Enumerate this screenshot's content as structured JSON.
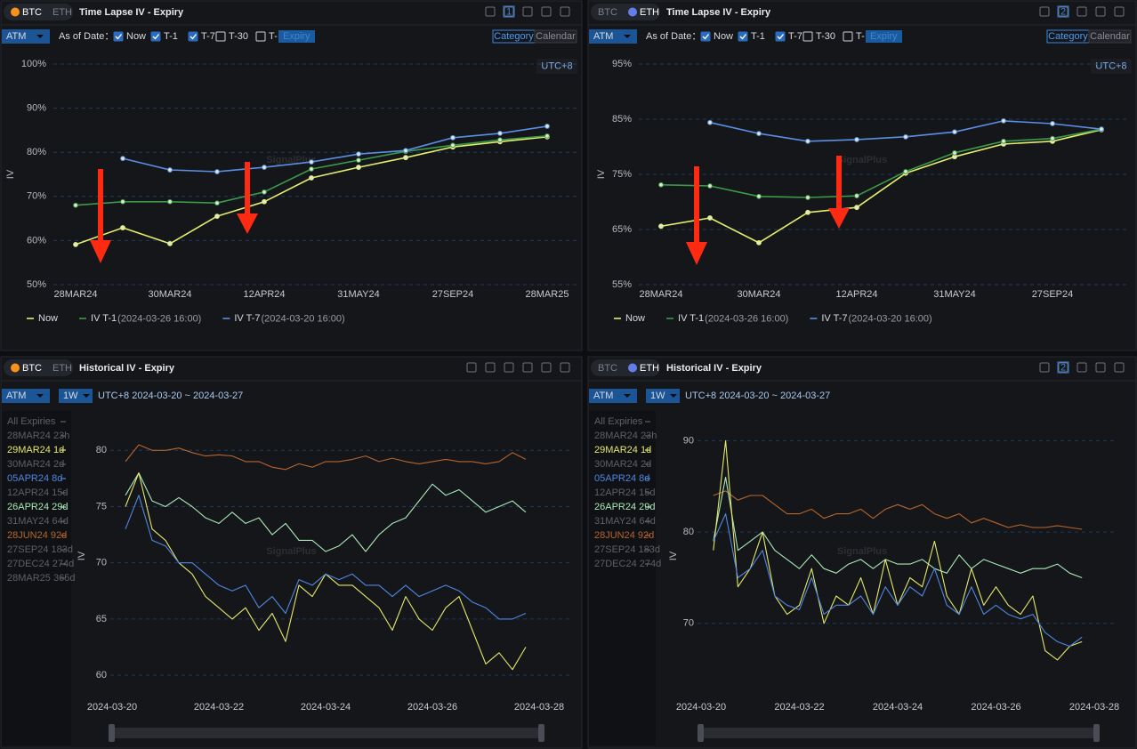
{
  "panels": [
    {
      "tabs": [
        "BTC",
        "ETH"
      ],
      "active_tab": 0,
      "title": "Time Lapse IV - Expiry",
      "page_badge": "1",
      "mode": "ATM",
      "as_of_label": "As of Date：",
      "checks": [
        {
          "label": "Now",
          "checked": true
        },
        {
          "label": "T-1",
          "checked": true
        },
        {
          "label": "T-7",
          "checked": true
        },
        {
          "label": "T-30",
          "checked": false
        },
        {
          "label": "T-",
          "checked": false
        }
      ],
      "expiry_placeholder": "Expiry",
      "views": [
        "Category",
        "Calendar"
      ],
      "active_view": 0,
      "timezone": "UTC+8",
      "watermark": "SignalPlus"
    },
    {
      "tabs": [
        "BTC",
        "ETH"
      ],
      "active_tab": 1,
      "title": "Time Lapse IV - Expiry",
      "page_badge": "2",
      "mode": "ATM",
      "as_of_label": "As of Date：",
      "checks": [
        {
          "label": "Now",
          "checked": true
        },
        {
          "label": "T-1",
          "checked": true
        },
        {
          "label": "T-7",
          "checked": true
        },
        {
          "label": "T-30",
          "checked": false
        },
        {
          "label": "T-",
          "checked": false
        }
      ],
      "expiry_placeholder": "Expiry",
      "views": [
        "Category",
        "Calendar"
      ],
      "active_view": 0,
      "timezone": "UTC+8",
      "watermark": "SignalPlus"
    },
    {
      "tabs": [
        "BTC",
        "ETH"
      ],
      "active_tab": 0,
      "title": "Historical IV - Expiry",
      "mode": "ATM",
      "period": "1W",
      "range": "UTC+8 2024-03-20 ~ 2024-03-27",
      "watermark": "SignalPlus",
      "expiries": [
        {
          "label": "All Expiries"
        },
        {
          "label": "28MAR24 23h"
        },
        {
          "label": "29MAR24 1d",
          "color": "#e4e86a"
        },
        {
          "label": "30MAR24 2d"
        },
        {
          "label": "05APR24 8d",
          "color": "#4f86e0"
        },
        {
          "label": "12APR24 15d"
        },
        {
          "label": "26APR24 29d",
          "color": "#a9e8b8"
        },
        {
          "label": "31MAY24 64d"
        },
        {
          "label": "28JUN24 92d",
          "color": "#b5652e"
        },
        {
          "label": "27SEP24 183d"
        },
        {
          "label": "27DEC24 274d"
        },
        {
          "label": "28MAR25 365d"
        }
      ]
    },
    {
      "tabs": [
        "BTC",
        "ETH"
      ],
      "active_tab": 1,
      "title": "Historical IV - Expiry",
      "page_badge": "2",
      "mode": "ATM",
      "period": "1W",
      "range": "UTC+8 2024-03-20 ~ 2024-03-27",
      "watermark": "SignalPlus",
      "expiries": [
        {
          "label": "All Expiries"
        },
        {
          "label": "28MAR24 23h"
        },
        {
          "label": "29MAR24 1d",
          "color": "#e4e86a"
        },
        {
          "label": "30MAR24 2d"
        },
        {
          "label": "05APR24 8d",
          "color": "#4f86e0"
        },
        {
          "label": "12APR24 15d"
        },
        {
          "label": "26APR24 29d",
          "color": "#a9e8b8"
        },
        {
          "label": "31MAY24 64d"
        },
        {
          "label": "28JUN24 92d",
          "color": "#b5652e"
        },
        {
          "label": "27SEP24 183d"
        },
        {
          "label": "27DEC24 274d"
        }
      ]
    }
  ],
  "chart_data": [
    {
      "type": "line",
      "y_label": "IV",
      "markers": true,
      "grid": true,
      "categories": [
        "28MAR24",
        null,
        "30MAR24",
        null,
        "12APR24",
        null,
        "31MAY24",
        null,
        "27SEP24",
        null,
        "28MAR25"
      ],
      "ylim": [
        50,
        100
      ],
      "yticks": [
        {
          "value": 50,
          "label": "50%"
        },
        {
          "value": 60,
          "label": "60%"
        },
        {
          "value": 70,
          "label": "70%"
        },
        {
          "value": 80,
          "label": "80%"
        },
        {
          "value": 90,
          "label": "90%"
        },
        {
          "value": 100,
          "label": "100%"
        }
      ],
      "series": [
        {
          "name": "Now",
          "color": "#e3ee6d",
          "values": [
            59.1,
            62.9,
            59.3,
            65.5,
            68.8,
            74.2,
            76.6,
            78.8,
            81.2,
            82.4,
            83.5
          ]
        },
        {
          "name": "IV T-1",
          "note": "(2024-03-26 16:00)",
          "color": "#3b9a48",
          "values": [
            68,
            68.8,
            68.8,
            68.5,
            71,
            76.2,
            78.2,
            80.2,
            81.6,
            82.8,
            83.7
          ]
        },
        {
          "name": "IV T-7",
          "note": "(2024-03-20 16:00)",
          "color": "#5b8fe6",
          "values": [
            null,
            78.6,
            76,
            75.6,
            76.6,
            77.8,
            79.6,
            80.4,
            83.3,
            84.3,
            85.9
          ]
        }
      ]
    },
    {
      "type": "line",
      "y_label": "IV",
      "markers": true,
      "grid": true,
      "categories": [
        "28MAR24",
        null,
        "30MAR24",
        null,
        "12APR24",
        null,
        "31MAY24",
        null,
        "27SEP24",
        null
      ],
      "ylim": [
        55,
        95
      ],
      "yticks": [
        {
          "value": 55,
          "label": "55%"
        },
        {
          "value": 65,
          "label": "65%"
        },
        {
          "value": 75,
          "label": "75%"
        },
        {
          "value": 85,
          "label": "85%"
        },
        {
          "value": 95,
          "label": "95%"
        }
      ],
      "series": [
        {
          "name": "Now",
          "color": "#e3ee6d",
          "values": [
            65.6,
            67.1,
            62.6,
            68.1,
            69,
            75.2,
            78.2,
            80.5,
            81,
            83.1
          ]
        },
        {
          "name": "IV T-1",
          "note": "(2024-03-26 16:00)",
          "color": "#3b9a48",
          "values": [
            73.1,
            72.9,
            71,
            70.8,
            71.1,
            75.5,
            78.9,
            81,
            81.5,
            83.2
          ]
        },
        {
          "name": "IV T-7",
          "note": "(2024-03-20 16:00)",
          "color": "#5b8fe6",
          "values": [
            null,
            84.4,
            82.4,
            81,
            81.3,
            81.8,
            82.7,
            84.7,
            84.2,
            83.2
          ]
        }
      ]
    },
    {
      "type": "line",
      "y_label": "IV",
      "markers": false,
      "grid": true,
      "categories": [
        "2024-03-20",
        null,
        null,
        null,
        null,
        null,
        null,
        null,
        "2024-03-22",
        null,
        null,
        null,
        null,
        null,
        null,
        null,
        "2024-03-24",
        null,
        null,
        null,
        null,
        null,
        null,
        null,
        "2024-03-26",
        null,
        null,
        null,
        null,
        null,
        null,
        null,
        "2024-03-28"
      ],
      "ylim": [
        58.5,
        82
      ],
      "yticks": [
        60,
        65,
        70,
        75,
        80
      ],
      "series": [
        {
          "color": "#b5652e",
          "values": [
            null,
            79,
            80.5,
            80,
            80,
            80.2,
            79.8,
            79.5,
            79.6,
            79.5,
            79,
            79,
            78.5,
            78.3,
            78.8,
            78.5,
            79,
            79,
            79.2,
            79.5,
            79,
            79.3,
            79,
            78.8,
            79,
            79.2,
            79,
            79,
            78.8,
            79,
            79.8,
            79.2,
            null
          ]
        },
        {
          "color": "#a9e8b8",
          "values": [
            null,
            76,
            78,
            75.5,
            75,
            75.8,
            75,
            74,
            73.5,
            74.5,
            73.5,
            74,
            72.5,
            73.5,
            72,
            72,
            71,
            71.5,
            72.5,
            71,
            72.5,
            73.5,
            74,
            75.5,
            77,
            76,
            76.5,
            75.5,
            74.5,
            75,
            75.5,
            74.5,
            null
          ]
        },
        {
          "color": "#e4e86a",
          "values": [
            null,
            75,
            78,
            73,
            72,
            70,
            69,
            67,
            66,
            65,
            66,
            64,
            65.5,
            63,
            68,
            67,
            69,
            68,
            68,
            67,
            66,
            64,
            67,
            65,
            64,
            66,
            67,
            64,
            61,
            62,
            60.5,
            62.5,
            null
          ]
        },
        {
          "color": "#4f86e0",
          "values": [
            null,
            73,
            76,
            72,
            71.5,
            70,
            70,
            69,
            68,
            67.5,
            68,
            66,
            67,
            65.5,
            68.5,
            68,
            69,
            68.5,
            69,
            68,
            68,
            67,
            68,
            67,
            67.5,
            68,
            67.5,
            66.5,
            66,
            65,
            65,
            65.5,
            null
          ]
        }
      ]
    },
    {
      "type": "line",
      "y_label": "IV",
      "markers": false,
      "grid": true,
      "categories": [
        "2024-03-20",
        null,
        null,
        null,
        null,
        null,
        null,
        null,
        "2024-03-22",
        null,
        null,
        null,
        null,
        null,
        null,
        null,
        "2024-03-24",
        null,
        null,
        null,
        null,
        null,
        null,
        null,
        "2024-03-26",
        null,
        null,
        null,
        null,
        null,
        null,
        null,
        "2024-03-28"
      ],
      "ylim": [
        62,
        91.5
      ],
      "yticks": [
        70,
        80,
        90
      ],
      "series": [
        {
          "color": "#b5652e",
          "values": [
            null,
            84,
            84.5,
            83.5,
            84,
            84,
            83,
            82,
            82,
            82.5,
            81.5,
            82,
            82,
            82.5,
            81.5,
            82.5,
            83,
            82.5,
            83,
            82,
            81.5,
            82,
            81,
            81.5,
            81,
            80.5,
            80.8,
            80.5,
            80.5,
            80.7,
            80.5,
            80.3,
            null
          ]
        },
        {
          "color": "#a9e8b8",
          "values": [
            null,
            79,
            86,
            78,
            79,
            80,
            78,
            77,
            76,
            77.5,
            76,
            75.5,
            76.5,
            77,
            76,
            77,
            76.5,
            76.5,
            77,
            76,
            75.5,
            77.5,
            76,
            77,
            76.5,
            76,
            75.5,
            76,
            76,
            76.5,
            75.5,
            75,
            null
          ]
        },
        {
          "color": "#e4e86a",
          "values": [
            null,
            78,
            90,
            74,
            76,
            80,
            73,
            71,
            72,
            76,
            70,
            73,
            72,
            75,
            71,
            77,
            72,
            75,
            74,
            79,
            73,
            71,
            76,
            72,
            74,
            72,
            71,
            73,
            67,
            66,
            67.5,
            68,
            null
          ]
        },
        {
          "color": "#4f86e0",
          "values": [
            null,
            79,
            82,
            75,
            76,
            78,
            73,
            72,
            71.5,
            75,
            71,
            72,
            72,
            73,
            71,
            74,
            72,
            74,
            73,
            76,
            72,
            71,
            74,
            71,
            72,
            71,
            70.5,
            71,
            69,
            68,
            67.5,
            68.5,
            null
          ]
        }
      ]
    }
  ]
}
